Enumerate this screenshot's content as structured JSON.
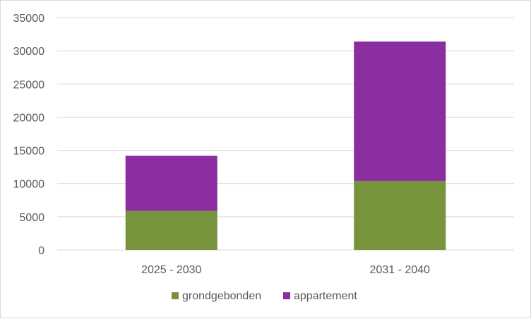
{
  "chart_data": {
    "type": "bar",
    "stacked": true,
    "categories": [
      "2025 - 2030",
      "2031 - 2040"
    ],
    "series": [
      {
        "name": "grondgebonden",
        "color": "#77933c",
        "values": [
          5900,
          10400
        ]
      },
      {
        "name": "appartement",
        "color": "#8a2da0",
        "values": [
          8300,
          21000
        ]
      }
    ],
    "title": "",
    "xlabel": "",
    "ylabel": "",
    "ylim": [
      0,
      35000
    ],
    "yticks": [
      "0",
      "5000",
      "10000",
      "15000",
      "20000",
      "25000",
      "30000",
      "35000"
    ],
    "grid": true,
    "legend_position": "bottom"
  }
}
